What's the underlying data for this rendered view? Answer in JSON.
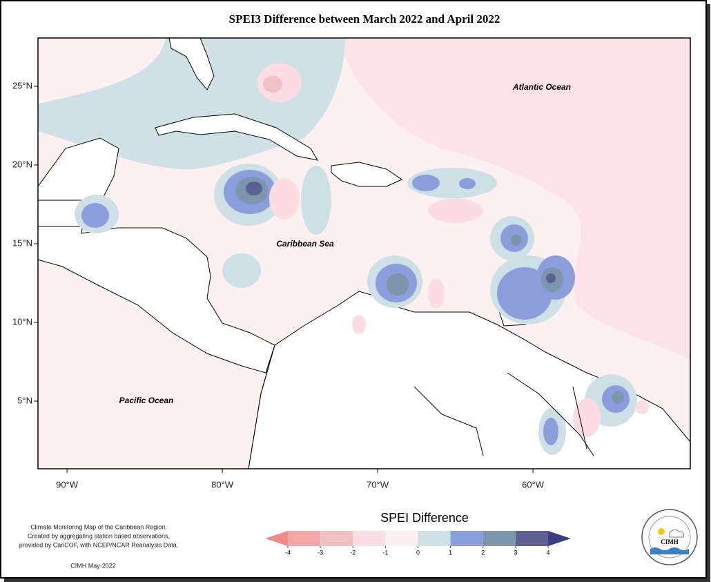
{
  "title": "SPEI3 Difference between March 2022 and April 2022",
  "map": {
    "xlim": [
      -91.87,
      -49.87
    ],
    "ylim": [
      0.7,
      28.07
    ],
    "xticks": [
      {
        "value": -90,
        "label": "90°W"
      },
      {
        "value": -80,
        "label": "80°W"
      },
      {
        "value": -70,
        "label": "70°W"
      },
      {
        "value": -60,
        "label": "60°W"
      }
    ],
    "yticks": [
      {
        "value": 5,
        "label": "5°N"
      },
      {
        "value": 10,
        "label": "10°N"
      },
      {
        "value": 15,
        "label": "15°N"
      },
      {
        "value": 20,
        "label": "20°N"
      },
      {
        "value": 25,
        "label": "25°N"
      }
    ],
    "labels": [
      "Atlantic Ocean",
      "Caribbean Sea",
      "Pacific Ocean"
    ]
  },
  "legend": {
    "title": "SPEI Difference",
    "ticks": [
      -4,
      -3,
      -2,
      -1,
      0,
      1,
      2,
      3,
      4
    ],
    "colors": [
      "#f08a8a",
      "#f4a5a7",
      "#efc1c3",
      "#fcdde3",
      "#fdf0f1",
      "#cde0e6",
      "#8c9ddc",
      "#7d95ad",
      "#5c6092",
      "#3b3e7c"
    ]
  },
  "footnote": [
    "Climate Monitoring Map of the Caribbean Region.",
    "Created by aggregating station based observations,",
    "provided by CariCOF, with NCEP/NCAR Reanalysis Data."
  ],
  "credit": "CIMH May-2022",
  "logo": "CIMH"
}
